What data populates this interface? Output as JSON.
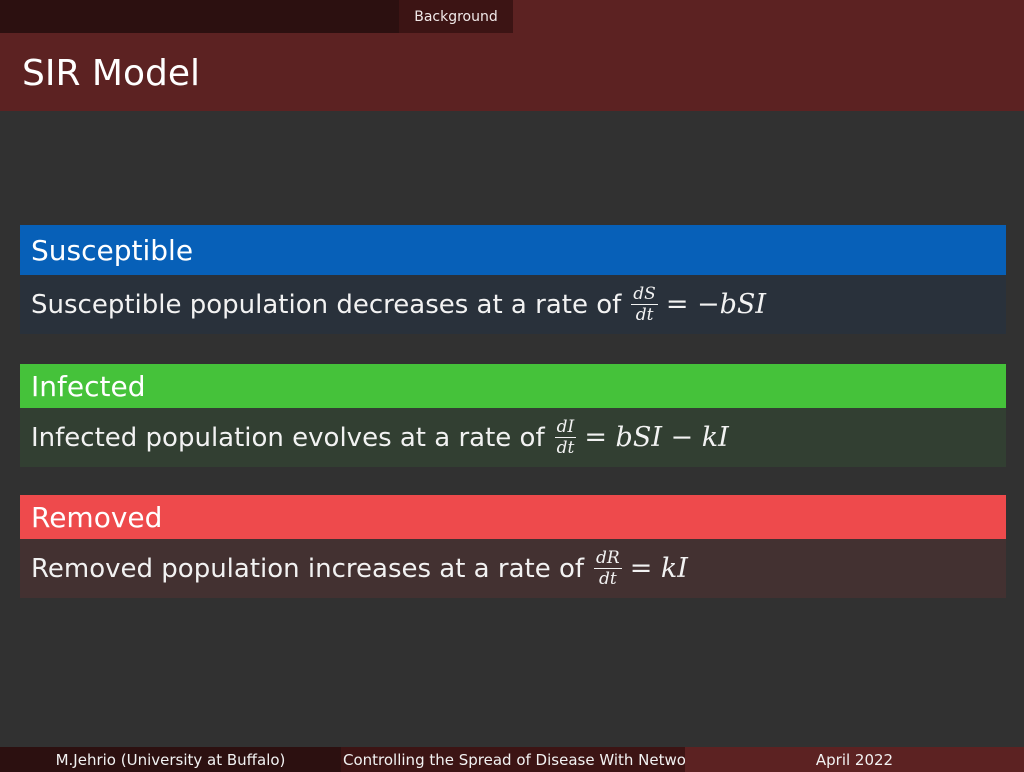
{
  "nav": {
    "section": "Background"
  },
  "slide": {
    "title": "SIR Model"
  },
  "blocks": [
    {
      "title": "Susceptible",
      "text": "Susceptible population decreases at a rate of",
      "frac_num": "dS",
      "frac_den": "dt",
      "rhs": "= −bSI",
      "colors": {
        "head": "#0760b8",
        "body": "#29313b"
      }
    },
    {
      "title": "Infected",
      "text": "Infected population evolves at a rate of",
      "frac_num": "dI",
      "frac_den": "dt",
      "rhs": "= bSI − kI",
      "colors": {
        "head": "#45c23a",
        "body": "#323f32"
      }
    },
    {
      "title": "Removed",
      "text": "Removed population increases at a rate of",
      "frac_num": "dR",
      "frac_den": "dt",
      "rhs": "= kI",
      "colors": {
        "head": "#ee4a4c",
        "body": "#433131"
      }
    }
  ],
  "footer": {
    "author": "M.Jehrio  (University at Buffalo)",
    "short_title": "Controlling the Spread of Disease With Netwo",
    "date": "April 2022"
  }
}
